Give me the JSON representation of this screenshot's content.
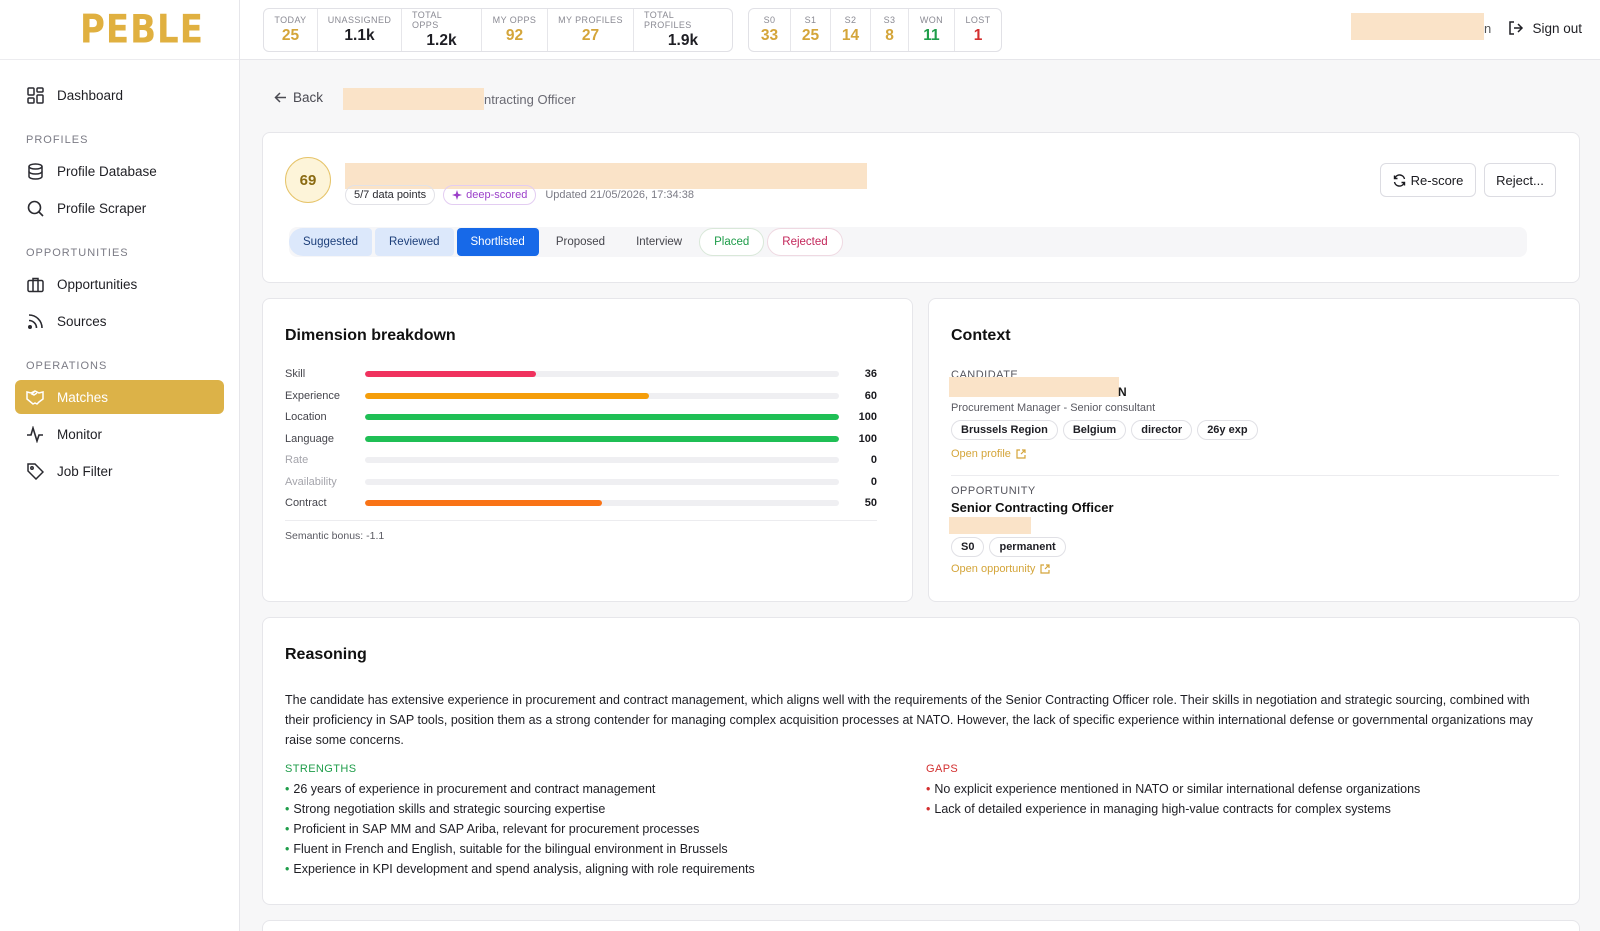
{
  "brand": {
    "logo": "PEBLE"
  },
  "sidebar": {
    "dashboard": "Dashboard",
    "sections": [
      "PROFILES",
      "OPPORTUNITIES",
      "OPERATIONS"
    ],
    "profiles": [
      "Profile Database",
      "Profile Scraper"
    ],
    "opportunities": [
      "Opportunities",
      "Sources"
    ],
    "operations": [
      "Matches",
      "Monitor",
      "Job Filter"
    ]
  },
  "stats_main": [
    {
      "label": "TODAY",
      "value": "25"
    },
    {
      "label": "UNASSIGNED",
      "value": "1.1k"
    },
    {
      "label": "TOTAL OPPS",
      "value": "1.2k"
    },
    {
      "label": "MY OPPS",
      "value": "92"
    },
    {
      "label": "MY PROFILES",
      "value": "27"
    },
    {
      "label": "TOTAL PROFILES",
      "value": "1.9k"
    }
  ],
  "stats_pipeline": [
    {
      "label": "S0",
      "value": "33"
    },
    {
      "label": "S1",
      "value": "25"
    },
    {
      "label": "S2",
      "value": "14"
    },
    {
      "label": "S3",
      "value": "8"
    },
    {
      "label": "WON",
      "value": "11"
    },
    {
      "label": "LOST",
      "value": "1"
    }
  ],
  "header": {
    "user_suffix": "n",
    "sign_out": "Sign out"
  },
  "breadcrumb": {
    "back": "Back",
    "title_suffix": "ntracting Officer"
  },
  "match": {
    "score": "69",
    "data_points": "5/7 data points",
    "badge": "deep-scored",
    "updated": "Updated 21/05/2026, 17:34:38",
    "rescore": "Re-score",
    "reject": "Reject...",
    "stages": [
      "Suggested",
      "Reviewed",
      "Shortlisted",
      "Proposed",
      "Interview",
      "Placed",
      "Rejected"
    ]
  },
  "dimensions": {
    "title": "Dimension breakdown",
    "rows": [
      {
        "label": "Skill",
        "value": "36",
        "color": "#f0325e"
      },
      {
        "label": "Experience",
        "value": "60",
        "color": "#f59e0b"
      },
      {
        "label": "Location",
        "value": "100",
        "color": "#1fbf55"
      },
      {
        "label": "Language",
        "value": "100",
        "color": "#1fbf55"
      },
      {
        "label": "Rate",
        "value": "0",
        "color": "#cccccc"
      },
      {
        "label": "Availability",
        "value": "0",
        "color": "#cccccc"
      },
      {
        "label": "Contract",
        "value": "50",
        "color": "#f97316"
      }
    ],
    "bonus": "Semantic bonus: -1.1"
  },
  "context": {
    "title": "Context",
    "candidate_label": "CANDIDATE",
    "candidate_suffix": "N",
    "candidate_role": "Procurement Manager - Senior consultant",
    "candidate_tags": [
      "Brussels Region",
      "Belgium",
      "director",
      "26y exp"
    ],
    "open_profile": "Open profile",
    "opportunity_label": "OPPORTUNITY",
    "opportunity_title": "Senior Contracting Officer",
    "opportunity_tags": [
      "S0",
      "permanent"
    ],
    "open_opportunity": "Open opportunity"
  },
  "reasoning": {
    "title": "Reasoning",
    "text": "The candidate has extensive experience in procurement and contract management, which aligns well with the requirements of the Senior Contracting Officer role. Their skills in negotiation and strategic sourcing, combined with their proficiency in SAP tools, position them as a strong contender for managing complex acquisition processes at NATO. However, the lack of specific experience within international defense or governmental organizations may raise some concerns.",
    "strengths_label": "STRENGTHS",
    "strengths": [
      "26 years of experience in procurement and contract management",
      "Strong negotiation skills and strategic sourcing expertise",
      "Proficient in SAP MM and SAP Ariba, relevant for procurement processes",
      "Fluent in French and English, suitable for the bilingual environment in Brussels",
      "Experience in KPI development and spend analysis, aligning with role requirements"
    ],
    "gaps_label": "GAPS",
    "gaps": [
      "No explicit experience mentioned in NATO or similar international defense organizations",
      "Lack of detailed experience in managing high-value contracts for complex systems"
    ]
  }
}
